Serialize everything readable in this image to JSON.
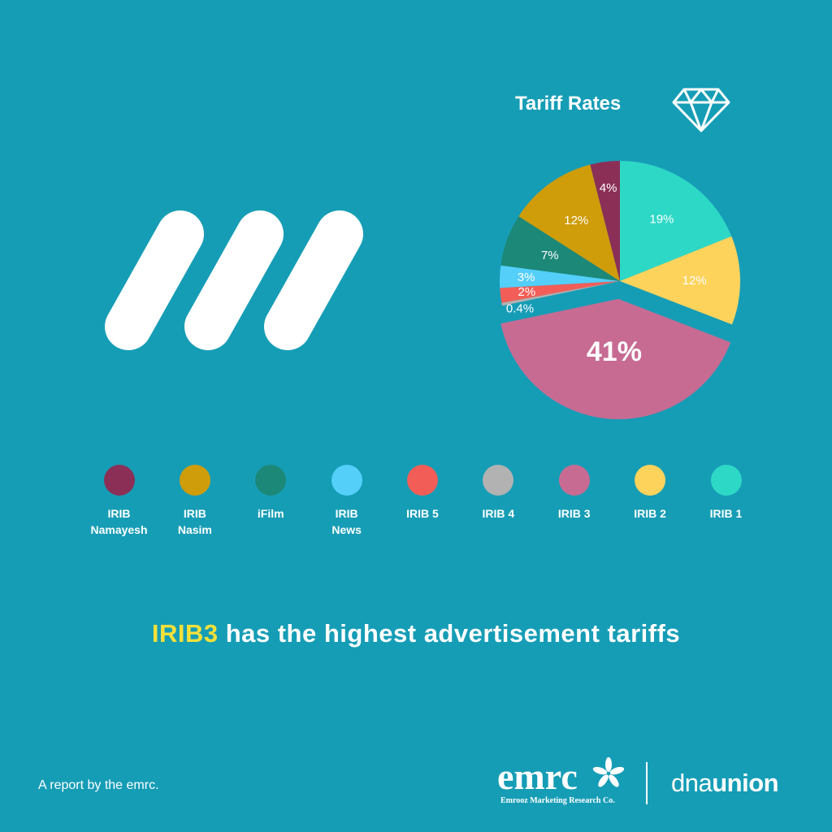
{
  "colors": {
    "background": "#169db6",
    "highlight": "#f5e13a"
  },
  "chart_data": {
    "type": "pie",
    "title": "Tariff Rates",
    "title_icon": "diamond-icon",
    "start_angle_deg": 0,
    "direction": "clockwise",
    "legend_position": "bottom",
    "slices": [
      {
        "name": "IRIB 1",
        "legend_label": "IRIB 1",
        "value": 19,
        "label": "19%",
        "color": "#2ed8c6"
      },
      {
        "name": "IRIB 2",
        "legend_label": "IRIB 2",
        "value": 12,
        "label": "12%",
        "color": "#fdd35c"
      },
      {
        "name": "IRIB 3",
        "legend_label": "IRIB 3",
        "value": 41,
        "label": "41%",
        "color": "#c76b93",
        "exploded": true
      },
      {
        "name": "IRIB 4",
        "legend_label": "IRIB 4",
        "value": 0.4,
        "label": "0.4%",
        "color": "#b2b2b2"
      },
      {
        "name": "IRIB 5",
        "legend_label": "IRIB 5",
        "value": 2,
        "label": "2%",
        "color": "#f25e57"
      },
      {
        "name": "IRIB News",
        "legend_label": "IRIB\nNews",
        "value": 3,
        "label": "3%",
        "color": "#54cff9"
      },
      {
        "name": "iFilm",
        "legend_label": "iFilm",
        "value": 7,
        "label": "7%",
        "color": "#1c8878"
      },
      {
        "name": "IRIB Nasim",
        "legend_label": "IRIB\nNasim",
        "value": 12,
        "label": "12%",
        "color": "#cf9c0a"
      },
      {
        "name": "IRIB Namayesh",
        "legend_label": "IRIB\nNamayesh",
        "value": 4,
        "label": "4%",
        "color": "#8b2f57"
      }
    ],
    "legend_order": [
      "IRIB Namayesh",
      "IRIB Nasim",
      "iFilm",
      "IRIB News",
      "IRIB 5",
      "IRIB 4",
      "IRIB 3",
      "IRIB 2",
      "IRIB 1"
    ]
  },
  "headline": {
    "highlight": "IRIB3",
    "rest": " has the highest advertisement tariffs"
  },
  "footer": {
    "note": "A report by the emrc.",
    "emrc_word": "emrc",
    "emrc_tagline": "Emrooz Marketing Research Co.",
    "dna_light": "dna",
    "dna_bold": "union"
  }
}
